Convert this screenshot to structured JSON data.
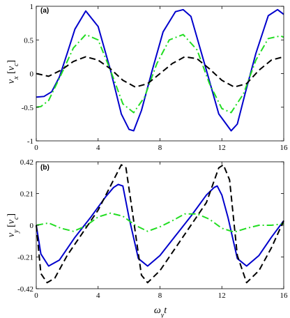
{
  "chart_data": [
    {
      "type": "line",
      "panel_label": "(a)",
      "ylabel_main": "v",
      "ylabel_sub": "x",
      "ylabel_unit_main": "v",
      "ylabel_unit_sub": "c",
      "xlabel": "",
      "xlim": [
        0,
        16
      ],
      "ylim": [
        -1,
        1
      ],
      "xticks": [
        "0",
        "4",
        "8",
        "12",
        "16"
      ],
      "yticks": [
        {
          "value": 1,
          "label": "1"
        },
        {
          "value": 0.5,
          "label": "0.5"
        },
        {
          "value": 0,
          "label": "0"
        },
        {
          "value": -0.5,
          "label": "-0.5"
        },
        {
          "value": -1,
          "label": "-1"
        }
      ],
      "grid": false,
      "series": [
        {
          "color": "#0000cc",
          "style": "solid",
          "x": [
            0,
            0.5,
            1.0,
            1.5,
            2.0,
            2.5,
            3.2,
            4.0,
            4.8,
            5.5,
            6.0,
            6.3,
            6.8,
            7.5,
            8.2,
            9.0,
            9.5,
            10.0,
            11.0,
            11.8,
            12.6,
            13.0,
            13.5,
            14.2,
            15.0,
            15.6,
            16.0
          ],
          "y": [
            -0.35,
            -0.34,
            -0.27,
            -0.05,
            0.3,
            0.66,
            0.93,
            0.7,
            0.05,
            -0.6,
            -0.83,
            -0.85,
            -0.55,
            0.05,
            0.62,
            0.92,
            0.95,
            0.85,
            0.05,
            -0.6,
            -0.85,
            -0.75,
            -0.3,
            0.3,
            0.86,
            0.95,
            0.88
          ]
        },
        {
          "color": "#22dd22",
          "style": "dashdot",
          "x": [
            0,
            0.3,
            0.8,
            1.6,
            2.4,
            3.2,
            4.0,
            4.8,
            5.6,
            6.3,
            7.0,
            7.8,
            8.6,
            9.5,
            10.4,
            11.2,
            12.0,
            12.6,
            13.4,
            14.2,
            15.0,
            15.8,
            16.0
          ],
          "y": [
            -0.5,
            -0.49,
            -0.4,
            -0.02,
            0.38,
            0.58,
            0.5,
            0.05,
            -0.45,
            -0.58,
            -0.35,
            0.15,
            0.5,
            0.58,
            0.35,
            -0.15,
            -0.52,
            -0.58,
            -0.3,
            0.2,
            0.52,
            0.56,
            0.54
          ]
        },
        {
          "color": "#000000",
          "style": "dashed",
          "x": [
            0,
            0.8,
            1.6,
            2.4,
            3.2,
            4.0,
            4.8,
            5.6,
            6.4,
            7.2,
            8.0,
            8.8,
            9.6,
            10.4,
            11.2,
            12.0,
            12.8,
            13.6,
            14.4,
            15.2,
            16.0
          ],
          "y": [
            0.0,
            -0.04,
            0.05,
            0.18,
            0.25,
            0.2,
            0.07,
            -0.1,
            -0.2,
            -0.15,
            0.0,
            0.15,
            0.25,
            0.22,
            0.07,
            -0.1,
            -0.2,
            -0.15,
            0.05,
            0.2,
            0.25
          ]
        }
      ]
    },
    {
      "type": "line",
      "panel_label": "(b)",
      "ylabel_main": "v",
      "ylabel_sub": "y",
      "ylabel_unit_main": "v",
      "ylabel_unit_sub": "c",
      "xlabel_main": "ω",
      "xlabel_sub": "y",
      "xlabel_tail": "t",
      "xlim": [
        0,
        16
      ],
      "ylim": [
        -0.42,
        0.42
      ],
      "xticks": [
        "0",
        "4",
        "8",
        "12",
        "16"
      ],
      "yticks": [
        {
          "value": 0.42,
          "label": "0.42"
        },
        {
          "value": 0.21,
          "label": "0.21"
        },
        {
          "value": 0,
          "label": "0"
        },
        {
          "value": -0.21,
          "label": "-0.21"
        },
        {
          "value": -0.42,
          "label": "-0.42"
        }
      ],
      "grid": false,
      "series": [
        {
          "color": "#0000cc",
          "style": "solid",
          "x": [
            0,
            0.3,
            0.8,
            1.5,
            2.5,
            3.5,
            4.5,
            5.0,
            5.3,
            5.6,
            6.0,
            6.6,
            7.2,
            8.0,
            9.0,
            10.0,
            11.0,
            11.5,
            11.7,
            12.0,
            12.4,
            13.0,
            13.6,
            14.4,
            15.2,
            16.0
          ],
          "y": [
            0.0,
            -0.19,
            -0.27,
            -0.23,
            -0.08,
            0.05,
            0.19,
            0.25,
            0.27,
            0.26,
            0.05,
            -0.22,
            -0.27,
            -0.2,
            -0.07,
            0.06,
            0.2,
            0.25,
            0.26,
            0.2,
            0.05,
            -0.22,
            -0.27,
            -0.2,
            -0.08,
            0.03
          ]
        },
        {
          "color": "#22dd22",
          "style": "dashdot",
          "x": [
            0,
            0.8,
            1.6,
            2.4,
            3.2,
            4.0,
            4.8,
            5.6,
            6.4,
            7.2,
            8.0,
            8.8,
            9.6,
            10.4,
            11.2,
            12.0,
            12.8,
            13.6,
            14.4,
            15.2,
            16.0
          ],
          "y": [
            0.0,
            0.015,
            -0.02,
            -0.04,
            -0.005,
            0.055,
            0.08,
            0.06,
            0.0,
            -0.04,
            -0.01,
            0.03,
            0.075,
            0.075,
            0.04,
            -0.02,
            -0.045,
            -0.02,
            0.0,
            0.0,
            0.01
          ]
        },
        {
          "color": "#000000",
          "style": "dashed",
          "x": [
            0,
            0.3,
            0.7,
            1.2,
            2.0,
            3.0,
            4.0,
            5.0,
            5.5,
            5.8,
            6.2,
            6.8,
            7.2,
            8.0,
            9.0,
            10.0,
            11.0,
            11.8,
            12.1,
            12.5,
            13.0,
            13.6,
            14.4,
            15.2,
            16.0
          ],
          "y": [
            0.0,
            -0.32,
            -0.38,
            -0.35,
            -0.2,
            -0.05,
            0.1,
            0.3,
            0.4,
            0.38,
            0.1,
            -0.33,
            -0.38,
            -0.3,
            -0.15,
            0.0,
            0.15,
            0.38,
            0.4,
            0.3,
            -0.2,
            -0.38,
            -0.3,
            -0.15,
            0.03
          ]
        }
      ]
    }
  ]
}
